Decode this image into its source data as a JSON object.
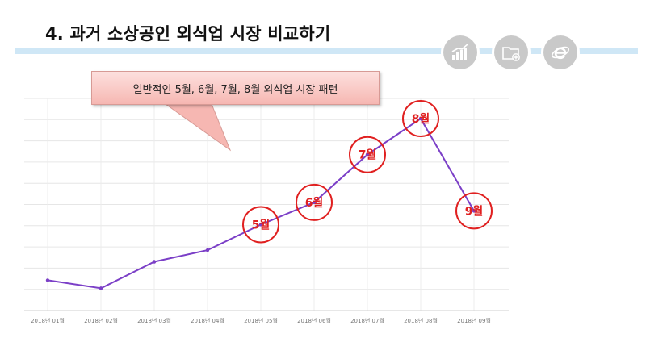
{
  "slide": {
    "title": "4. 과거 소상공인 외식업 시장 비교하기",
    "icons": [
      "bar-chart-icon",
      "folder-add-icon",
      "internet-explorer-icon"
    ]
  },
  "callout": {
    "text": "일반적인 5월, 6월, 7월, 8월 외식업 시장 패턴"
  },
  "chart_data": {
    "type": "line",
    "categories": [
      "2018년 01월",
      "2018년 02월",
      "2018년 03월",
      "2018년 04월",
      "2018년 05월",
      "2018년 06월",
      "2018년 07월",
      "2018년 08월",
      "2018년 09월"
    ],
    "series": [
      {
        "values": [
          14.3,
          10.5,
          23.0,
          28.5,
          40.5,
          51.0,
          73.5,
          90.5,
          47.0
        ],
        "color": "#7b3fc7"
      }
    ],
    "ylim": [
      0,
      100
    ],
    "grid": true,
    "annotations": [
      {
        "label": "5월",
        "category": "2018년 05월"
      },
      {
        "label": "6월",
        "category": "2018년 06월"
      },
      {
        "label": "7월",
        "category": "2018년 07월"
      },
      {
        "label": "8월",
        "category": "2018년 08월"
      },
      {
        "label": "9월",
        "category": "2018년 09월"
      }
    ],
    "annotation_color": "#e02020"
  }
}
